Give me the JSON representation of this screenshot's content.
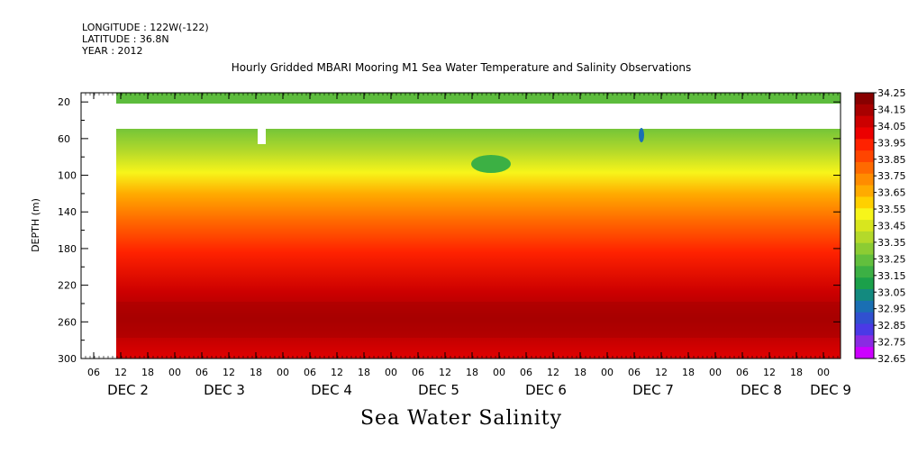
{
  "header": {
    "longitude": "LONGITUDE : 122W(-122)",
    "latitude": "LATITUDE : 36.8N",
    "year": "YEAR : 2012"
  },
  "title": "Hourly Gridded MBARI Mooring M1 Sea Water Temperature and Salinity Observations",
  "variable_label": "Sea Water Salinity",
  "colors": {
    "scale": [
      "#cc00ff",
      "#8a2be2",
      "#4b39e6",
      "#3050d0",
      "#1a6fb3",
      "#138a7f",
      "#1ba04a",
      "#3cb044",
      "#62bf3d",
      "#8ccc33",
      "#b4d92a",
      "#d8e61e",
      "#f7f51a",
      "#ffd000",
      "#ffab00",
      "#ff8c00",
      "#ff6a00",
      "#ff4500",
      "#ff2200",
      "#ec0000",
      "#cc0000",
      "#a80000",
      "#880000"
    ]
  },
  "chart_data": {
    "type": "heatmap",
    "title": "Hourly Gridded MBARI Mooring M1 Sea Water Temperature and Salinity Observations",
    "ylabel": "DEPTH (m)",
    "ylim": [
      300,
      0
    ],
    "y_ticks": [
      "20",
      "60",
      "100",
      "140",
      "180",
      "220",
      "260",
      "300"
    ],
    "x_hour_ticks": [
      "06",
      "12",
      "18",
      "00",
      "06",
      "12",
      "18",
      "00",
      "06",
      "12",
      "18",
      "00",
      "06",
      "12",
      "18",
      "00",
      "06",
      "12",
      "18",
      "00",
      "06",
      "12",
      "18",
      "00",
      "06",
      "12",
      "18",
      "00"
    ],
    "x_day_labels": [
      "DEC 2",
      "DEC 3",
      "DEC 4",
      "DEC 5",
      "DEC 6",
      "DEC 7",
      "DEC 8",
      "DEC 9"
    ],
    "colorbar": {
      "labels": [
        "34.25",
        "34.15",
        "34.05",
        "33.95",
        "33.85",
        "33.75",
        "33.65",
        "33.55",
        "33.45",
        "33.35",
        "33.25",
        "33.15",
        "33.05",
        "32.95",
        "32.85",
        "32.75",
        "32.65"
      ]
    },
    "zlabel": "Sea Water Salinity"
  }
}
